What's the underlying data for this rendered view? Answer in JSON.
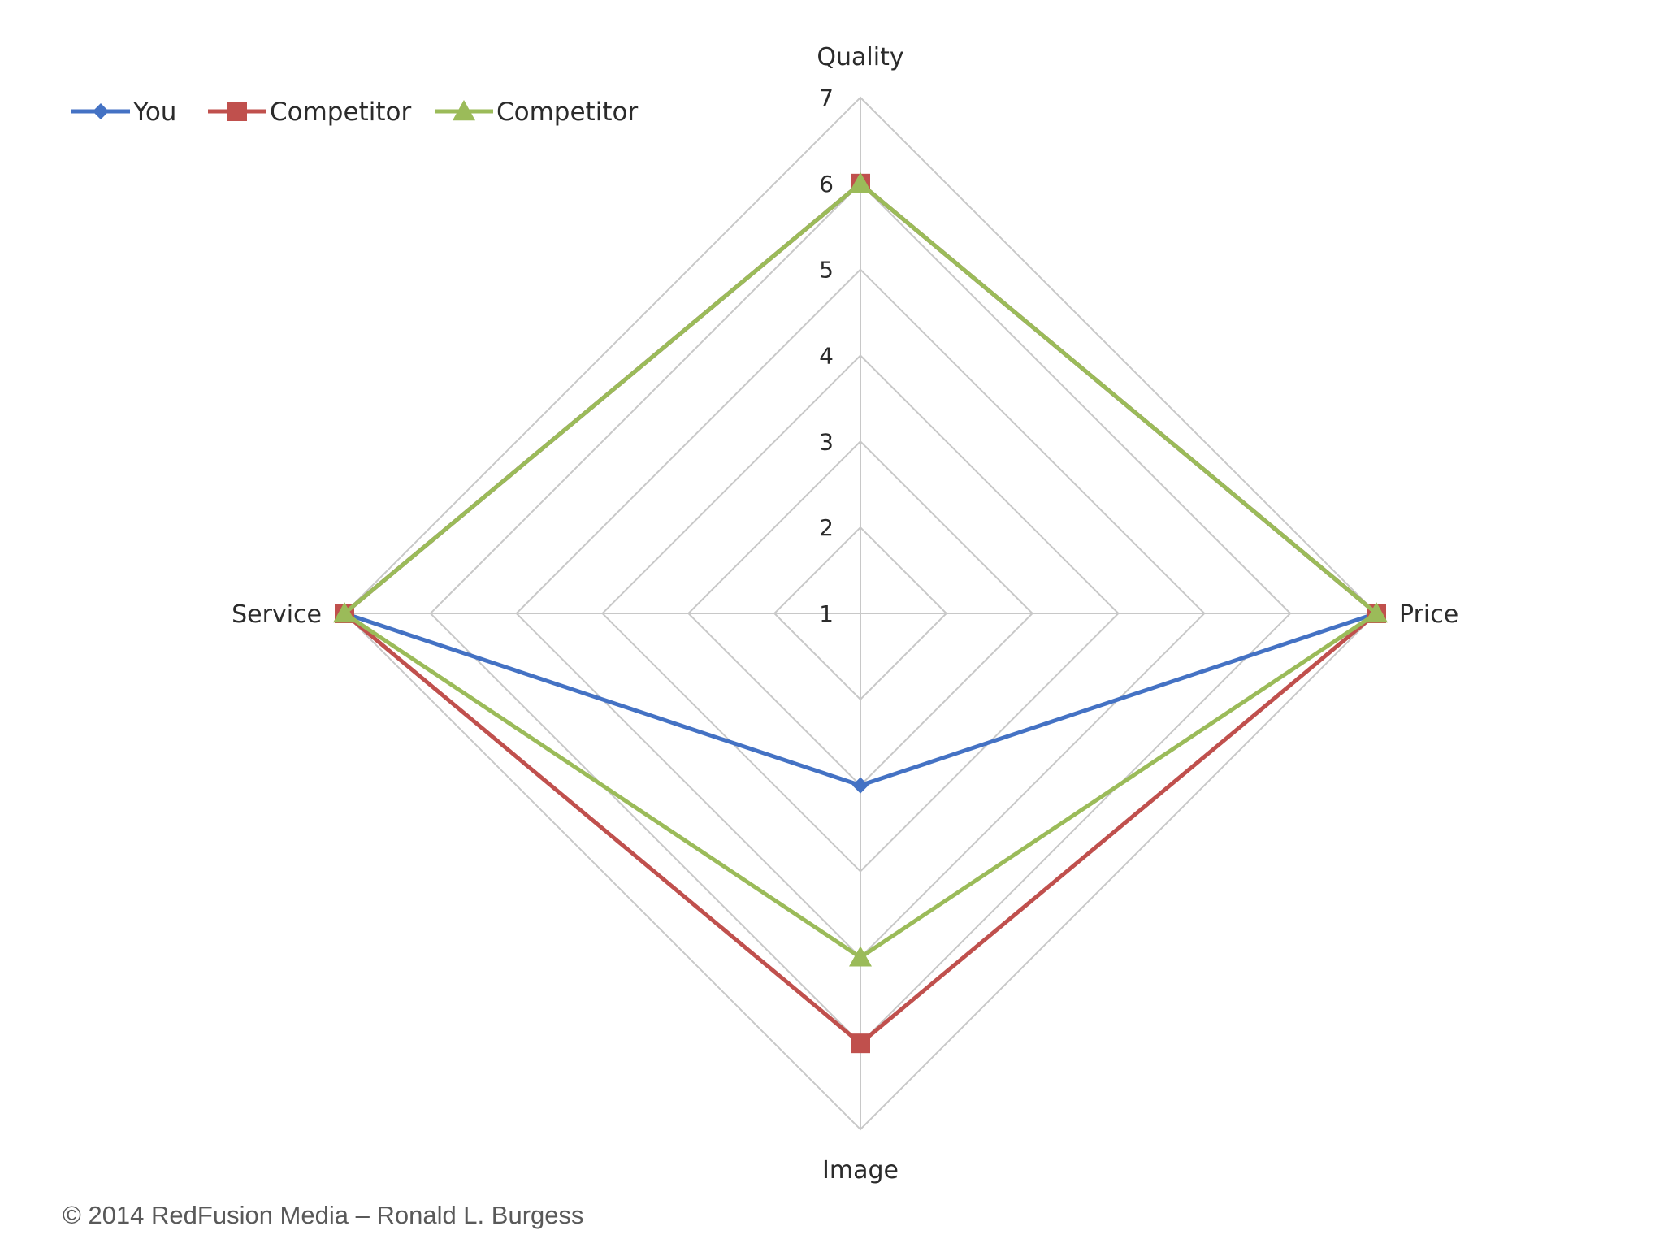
{
  "chart_data": {
    "type": "radar",
    "title": "",
    "categories": [
      "Quality",
      "Price",
      "Image",
      "Service"
    ],
    "axis_ticks": [
      "1",
      "2",
      "3",
      "4",
      "5",
      "6",
      "7"
    ],
    "rmin": 1,
    "rmax": 7,
    "legend_position": "top-left",
    "series": [
      {
        "name": "You",
        "color": "#4472C4",
        "marker": "diamond",
        "values": [
          6,
          7,
          3,
          7
        ]
      },
      {
        "name": "Competitor",
        "color": "#C0504D",
        "marker": "square",
        "values": [
          6,
          7,
          6,
          7
        ]
      },
      {
        "name": "Competitor",
        "color": "#9BBB59",
        "marker": "triangle",
        "values": [
          6,
          7,
          5,
          7
        ]
      }
    ]
  },
  "footer": {
    "copyright": "© 2014 RedFusion Media – Ronald L.  Burgess"
  }
}
